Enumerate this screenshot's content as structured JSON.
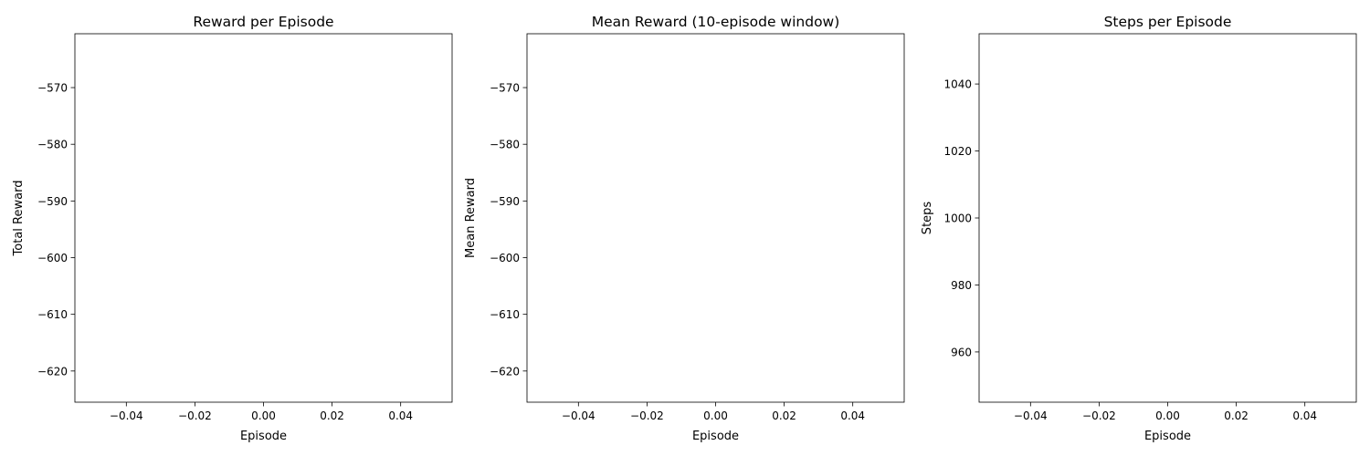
{
  "chart_data": [
    {
      "type": "line",
      "title": "Reward per Episode",
      "xlabel": "Episode",
      "ylabel": "Total Reward",
      "xlim": [
        -0.055,
        0.055
      ],
      "ylim": [
        -625.5,
        -560.5
      ],
      "xticks": [
        -0.04,
        -0.02,
        0.0,
        0.02,
        0.04
      ],
      "xtick_labels": [
        "−0.04",
        "−0.02",
        "0.00",
        "0.02",
        "0.04"
      ],
      "yticks": [
        -570,
        -580,
        -590,
        -600,
        -610,
        -620
      ],
      "ytick_labels": [
        "−570",
        "−580",
        "−590",
        "−600",
        "−610",
        "−620"
      ],
      "series": []
    },
    {
      "type": "line",
      "title": "Mean Reward (10-episode window)",
      "xlabel": "Episode",
      "ylabel": "Mean Reward",
      "xlim": [
        -0.055,
        0.055
      ],
      "ylim": [
        -625.5,
        -560.5
      ],
      "xticks": [
        -0.04,
        -0.02,
        0.0,
        0.02,
        0.04
      ],
      "xtick_labels": [
        "−0.04",
        "−0.02",
        "0.00",
        "0.02",
        "0.04"
      ],
      "yticks": [
        -570,
        -580,
        -590,
        -600,
        -610,
        -620
      ],
      "ytick_labels": [
        "−570",
        "−580",
        "−590",
        "−600",
        "−610",
        "−620"
      ],
      "series": []
    },
    {
      "type": "line",
      "title": "Steps per Episode",
      "xlabel": "Episode",
      "ylabel": "Steps",
      "xlim": [
        -0.055,
        0.055
      ],
      "ylim": [
        945,
        1055
      ],
      "xticks": [
        -0.04,
        -0.02,
        0.0,
        0.02,
        0.04
      ],
      "xtick_labels": [
        "−0.04",
        "−0.02",
        "0.00",
        "0.02",
        "0.04"
      ],
      "yticks": [
        1040,
        1020,
        1000,
        980,
        960
      ],
      "ytick_labels": [
        "1040",
        "1020",
        "1000",
        "980",
        "960"
      ],
      "series": []
    }
  ]
}
